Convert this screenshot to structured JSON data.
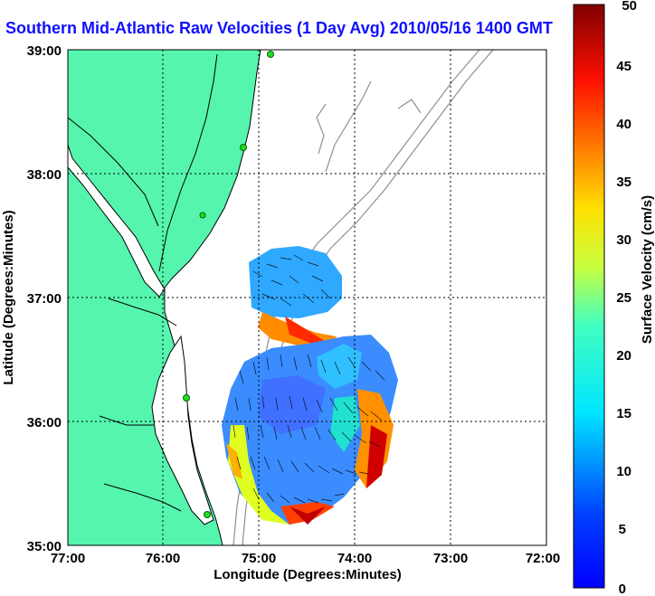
{
  "title": "Southern Mid-Atlantic Raw Velocities (1 Day Avg) 2010/05/16 1400 GMT",
  "x_axis": {
    "label": "Longitude (Degrees:Minutes)",
    "ticks": [
      "77:00",
      "76:00",
      "75:00",
      "74:00",
      "73:00",
      "72:00"
    ]
  },
  "y_axis": {
    "label": "Latitude (Degrees:Minutes)",
    "ticks": [
      "39:00",
      "38:00",
      "37:00",
      "36:00",
      "35:00"
    ]
  },
  "colorbar": {
    "label": "Surface Velocity (cm/s)",
    "ticks": [
      "50",
      "45",
      "40",
      "35",
      "30",
      "25",
      "20",
      "15",
      "10",
      "5",
      "0"
    ],
    "range": [
      0,
      50
    ]
  },
  "colors": {
    "land": "#55f5ae",
    "title": "#1010ff",
    "station": "#22dd22",
    "bathymetry": "#909090"
  }
}
